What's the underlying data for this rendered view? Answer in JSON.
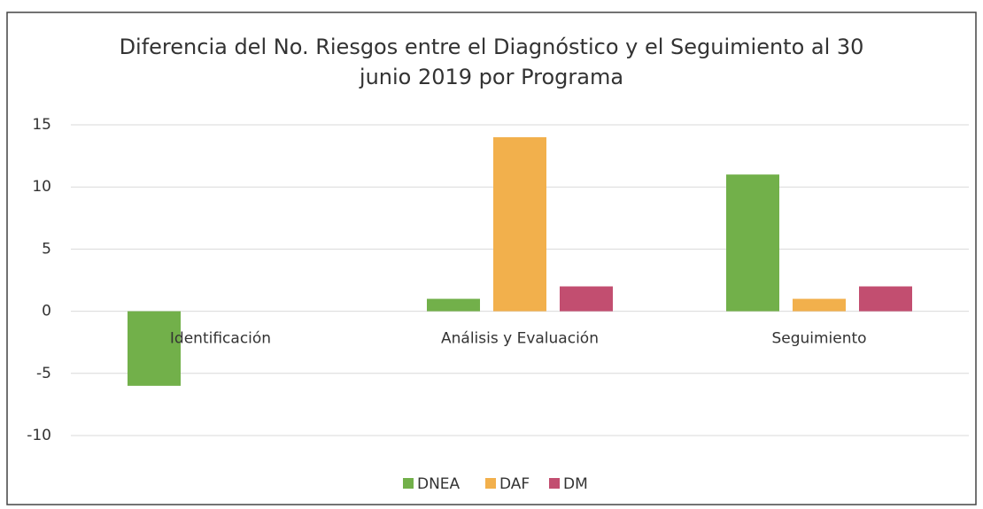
{
  "chart_data": {
    "type": "bar",
    "title": "Diferencia del No. Riesgos entre el Diagnóstico y el Seguimiento al 30 junio 2019 por Programa",
    "categories": [
      "Identificación",
      "Análisis y Evaluación",
      "Seguimiento"
    ],
    "series": [
      {
        "name": "DNEA",
        "color": "#72b04a",
        "values": [
          -6,
          1,
          11
        ]
      },
      {
        "name": "DAF",
        "color": "#f2b04c",
        "values": [
          0,
          14,
          1
        ]
      },
      {
        "name": "DM",
        "color": "#c24e70",
        "values": [
          0,
          2,
          2
        ]
      }
    ],
    "ylim": [
      -10,
      15
    ],
    "yticks": [
      -10,
      -5,
      0,
      5,
      10,
      15
    ],
    "grid": true,
    "legend": "bottom"
  }
}
